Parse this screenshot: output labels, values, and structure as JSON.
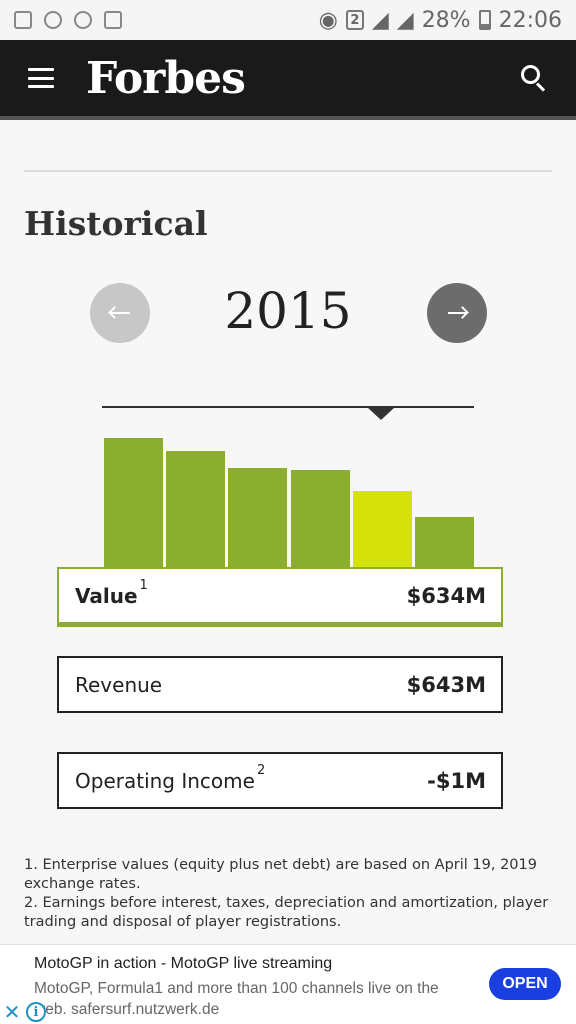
{
  "status_bar": {
    "battery": "28%",
    "time": "22:06",
    "sim_slot": "2"
  },
  "header": {
    "logo": "Forbes"
  },
  "section": {
    "title": "Historical"
  },
  "year_selector": {
    "year": "2015"
  },
  "chart_data": {
    "type": "bar",
    "values": [
      1000,
      900,
      770,
      750,
      590,
      390
    ],
    "selected_index": 4,
    "colors": {
      "bar": "#8cae2e",
      "selected": "#d4e10a"
    }
  },
  "metrics": [
    {
      "label": "Value",
      "sup": "1",
      "value": "$634M"
    },
    {
      "label": "Revenue",
      "sup": "",
      "value": "$643M"
    },
    {
      "label": "Operating Income",
      "sup": "2",
      "value": "-$1M"
    }
  ],
  "footnotes": [
    "1. Enterprise values (equity plus net debt) are based on April 19, 2019 exchange rates.",
    "2. Earnings before interest, taxes, depreciation and amortization, player trading and disposal of player registrations."
  ],
  "ad": {
    "title": "MotoGP in action - MotoGP live streaming",
    "body": "MotoGP, Formula1 and more than 100 channels live on the web. safersurf.nutzwerk.de",
    "cta": "OPEN",
    "close_glyph": "✕",
    "info_glyph": "i",
    "cta_color": "#1a3fe0"
  }
}
